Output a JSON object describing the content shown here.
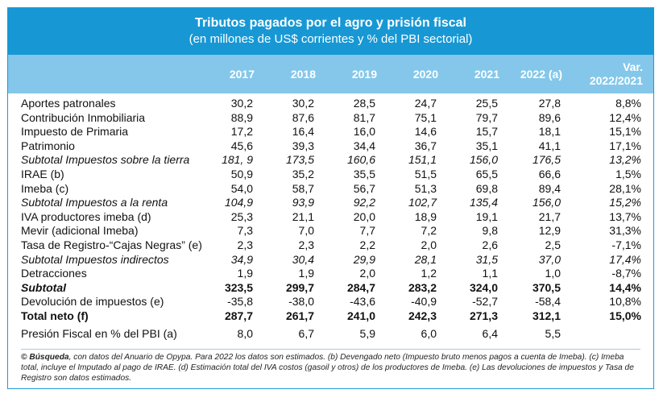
{
  "title": "Tributos pagados por el agro y prisión fiscal",
  "subtitle": "(en millones de US$ corrientes y % del PBI sectorial)",
  "columns": [
    "2017",
    "2018",
    "2019",
    "2020",
    "2021",
    "2022 (a)"
  ],
  "var_header": [
    "Var.",
    "2022/2021"
  ],
  "rows": [
    {
      "label": "Aportes patronales",
      "values": [
        "30,2",
        "30,2",
        "28,5",
        "24,7",
        "25,5",
        "27,8"
      ],
      "var": "8,8%",
      "style": "normal"
    },
    {
      "label": "Contribución Inmobiliaria",
      "values": [
        "88,9",
        "87,6",
        "81,7",
        "75,1",
        "79,7",
        "89,6"
      ],
      "var": "12,4%",
      "style": "normal"
    },
    {
      "label": "Impuesto de Primaria",
      "values": [
        "17,2",
        "16,4",
        "16,0",
        "14,6",
        "15,7",
        "18,1"
      ],
      "var": "15,1%",
      "style": "normal"
    },
    {
      "label": "Patrimonio",
      "values": [
        "45,6",
        "39,3",
        "34,4",
        "36,7",
        "35,1",
        "41,1"
      ],
      "var": "17,1%",
      "style": "normal"
    },
    {
      "label": "Subtotal Impuestos sobre la tierra",
      "values": [
        "181, 9",
        "173,5",
        "160,6",
        "151,1",
        "156,0",
        "176,5"
      ],
      "var": "13,2%",
      "style": "italic"
    },
    {
      "label": "IRAE (b)",
      "values": [
        "50,9",
        "35,2",
        "35,5",
        "51,5",
        "65,5",
        "66,6"
      ],
      "var": "1,5%",
      "style": "normal"
    },
    {
      "label": "Imeba (c)",
      "values": [
        "54,0",
        "58,7",
        "56,7",
        "51,3",
        "69,8",
        "89,4"
      ],
      "var": "28,1%",
      "style": "normal"
    },
    {
      "label": "Subtotal Impuestos a la renta",
      "values": [
        "104,9",
        "93,9",
        "92,2",
        "102,7",
        "135,4",
        "156,0"
      ],
      "var": "15,2%",
      "style": "italic"
    },
    {
      "label": "IVA productores imeba (d)",
      "values": [
        "25,3",
        "21,1",
        "20,0",
        "18,9",
        "19,1",
        "21,7"
      ],
      "var": "13,7%",
      "style": "normal"
    },
    {
      "label": "Mevir (adicional Imeba)",
      "values": [
        "7,3",
        "7,0",
        "7,7",
        "7,2",
        "9,8",
        "12,9"
      ],
      "var": "31,3%",
      "style": "normal"
    },
    {
      "label": "Tasa de Registro-“Cajas Negras” (e)",
      "values": [
        "2,3",
        "2,3",
        "2,2",
        "2,0",
        "2,6",
        "2,5"
      ],
      "var": "-7,1%",
      "style": "normal"
    },
    {
      "label": "Subtotal Impuestos indirectos",
      "values": [
        "34,9",
        "30,4",
        "29,9",
        "28,1",
        "31,5",
        "37,0"
      ],
      "var": "17,4%",
      "style": "italic"
    },
    {
      "label": "Detracciones",
      "values": [
        "1,9",
        "1,9",
        "2,0",
        "1,2",
        "1,1",
        "1,0"
      ],
      "var": "-8,7%",
      "style": "normal"
    },
    {
      "label": "Subtotal",
      "values": [
        "323,5",
        "299,7",
        "284,7",
        "283,2",
        "324,0",
        "370,5"
      ],
      "var": "14,4%",
      "style": "bolditalic"
    },
    {
      "label": "Devolución de impuestos (e)",
      "values": [
        "-35,8",
        "-38,0",
        "-43,6",
        "-40,9",
        "-52,7",
        "-58,4"
      ],
      "var": "10,8%",
      "style": "normal"
    },
    {
      "label": "Total neto (f)",
      "values": [
        "287,7",
        "261,7",
        "241,0",
        "242,3",
        "271,3",
        "312,1"
      ],
      "var": "15,0%",
      "style": "bold"
    }
  ],
  "pressure_row": {
    "label": "Presión Fiscal en % del PBI (a)",
    "values": [
      "8,0",
      "6,7",
      "5,9",
      "6,0",
      "6,4",
      "5,5"
    ]
  },
  "footnote": {
    "source_bold": "© Búsqueda",
    "text": ", con datos del Anuario de Opypa. Para 2022 los datos son estimados. (b) Devengado neto (Impuesto bruto menos pagos a cuenta de Imeba). (c) Imeba total, incluye el Imputado al pago de IRAE. (d) Estimación total del IVA costos (gasoil y otros) de los productores de Imeba. (e) Las devoluciones de impuestos y Tasa de Registro son datos estimados."
  },
  "colors": {
    "title_bg": "#1798d4",
    "header_bg": "#84c7ea",
    "border": "#1b9bd7"
  }
}
